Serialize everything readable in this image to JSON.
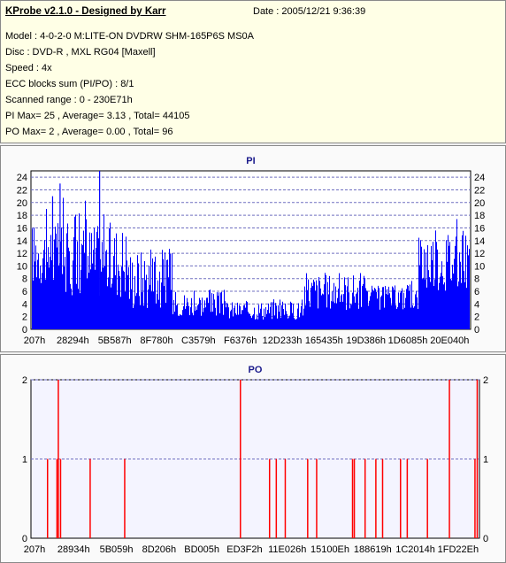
{
  "info": {
    "title": "KProbe v2.1.0 - Designed by Karr",
    "date": "Date : 2005/12/21 9:36:39",
    "lines": [
      "Model : 4-0-2-0 M:LITE-ON DVDRW SHM-165P6S MS0A",
      "Disc : DVD-R , MXL RG04 [Maxell]",
      "Speed : 4x",
      "ECC blocks sum (PI/PO) : 8/1",
      "Scanned range : 0 - 230E71h",
      "PI Max= 25 , Average= 3.13 , Total= 44105",
      "PO Max= 2 , Average= 0.00 , Total= 96"
    ]
  },
  "colors": {
    "pi_bar": "#0000ff",
    "po_bar": "#ff0000",
    "grid": "#7070c0",
    "plot_bg_pi": "#ffffff",
    "plot_bg_po": "#f4f4ff"
  },
  "chart_data": [
    {
      "type": "bar",
      "title": "PI",
      "ylim": [
        0,
        25
      ],
      "yticks": [
        0,
        2,
        4,
        6,
        8,
        10,
        12,
        14,
        16,
        18,
        20,
        22,
        24
      ],
      "xtick_labels": [
        "207h",
        "28294h",
        "5B587h",
        "8F780h",
        "C3579h",
        "F6376h",
        "12D233h",
        "165435h",
        "19D386h",
        "1D6085h",
        "20E040h"
      ],
      "grid": "dashed horizontal",
      "segments": [
        {
          "from": 0.0,
          "to": 0.07,
          "avg": 12,
          "spread": 5,
          "peak": 19
        },
        {
          "from": 0.07,
          "to": 0.22,
          "avg": 11,
          "spread": 6,
          "peak": 21
        },
        {
          "from": 0.22,
          "to": 0.32,
          "avg": 8,
          "spread": 5,
          "peak": 13
        },
        {
          "from": 0.32,
          "to": 0.44,
          "avg": 4,
          "spread": 2,
          "peak": 7
        },
        {
          "from": 0.44,
          "to": 0.62,
          "avg": 3,
          "spread": 1.5,
          "peak": 5
        },
        {
          "from": 0.62,
          "to": 0.76,
          "avg": 6,
          "spread": 3,
          "peak": 10
        },
        {
          "from": 0.76,
          "to": 0.88,
          "avg": 5,
          "spread": 2,
          "peak": 8
        },
        {
          "from": 0.88,
          "to": 1.0,
          "avg": 11,
          "spread": 5,
          "peak": 18
        }
      ],
      "spikes": [
        {
          "pos": 0.155,
          "value": 25
        },
        {
          "pos": 0.065,
          "value": 23
        },
        {
          "pos": 0.048,
          "value": 21
        }
      ]
    },
    {
      "type": "bar",
      "title": "PO",
      "ylim": [
        0,
        2
      ],
      "yticks": [
        0,
        1,
        2
      ],
      "xtick_labels": [
        "207h",
        "28934h",
        "5B059h",
        "8D206h",
        "BD005h",
        "ED3F2h",
        "11E026h",
        "15100Eh",
        "188619h",
        "1C2014h",
        "1FD22Eh"
      ],
      "grid": "dashed horizontal",
      "spikes": [
        {
          "pos": 0.037,
          "value": 1
        },
        {
          "pos": 0.058,
          "value": 1
        },
        {
          "pos": 0.061,
          "value": 2
        },
        {
          "pos": 0.066,
          "value": 1
        },
        {
          "pos": 0.132,
          "value": 1
        },
        {
          "pos": 0.209,
          "value": 1
        },
        {
          "pos": 0.467,
          "value": 2
        },
        {
          "pos": 0.532,
          "value": 1
        },
        {
          "pos": 0.547,
          "value": 1
        },
        {
          "pos": 0.567,
          "value": 1
        },
        {
          "pos": 0.617,
          "value": 1
        },
        {
          "pos": 0.637,
          "value": 1
        },
        {
          "pos": 0.717,
          "value": 1
        },
        {
          "pos": 0.721,
          "value": 1
        },
        {
          "pos": 0.745,
          "value": 1
        },
        {
          "pos": 0.769,
          "value": 1
        },
        {
          "pos": 0.784,
          "value": 1
        },
        {
          "pos": 0.824,
          "value": 1
        },
        {
          "pos": 0.839,
          "value": 1
        },
        {
          "pos": 0.884,
          "value": 1
        },
        {
          "pos": 0.933,
          "value": 2
        },
        {
          "pos": 0.99,
          "value": 1
        },
        {
          "pos": 0.995,
          "value": 2
        }
      ]
    }
  ]
}
